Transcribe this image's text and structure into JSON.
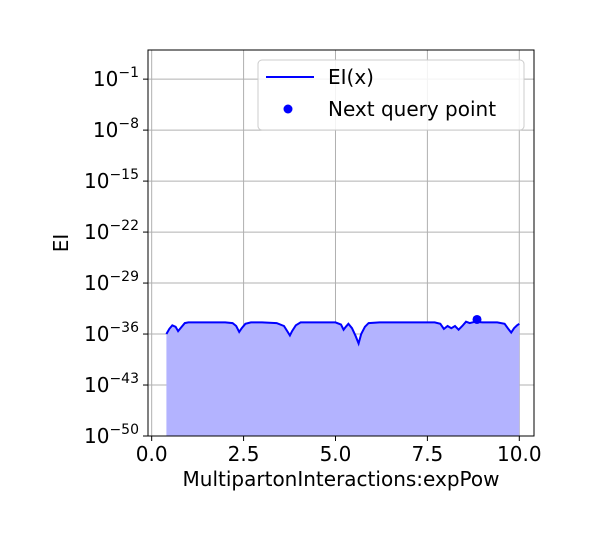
{
  "chart_data": {
    "type": "line",
    "title": "",
    "xlabel": "MultipartonInteractions:expPow",
    "ylabel": "EI",
    "xlim": [
      -0.1,
      10.4
    ],
    "ylim_log10": [
      -50,
      3
    ],
    "y_scale": "log",
    "grid": true,
    "legend_position": "top-right",
    "x_ticks": [
      {
        "value": 0.0,
        "label": "0.0"
      },
      {
        "value": 2.5,
        "label": "2.5"
      },
      {
        "value": 5.0,
        "label": "5.0"
      },
      {
        "value": 7.5,
        "label": "7.5"
      },
      {
        "value": 10.0,
        "label": "10.0"
      }
    ],
    "y_ticks": [
      {
        "exp": -50,
        "base": "10",
        "exponent": "−50"
      },
      {
        "exp": -43,
        "base": "10",
        "exponent": "−43"
      },
      {
        "exp": -36,
        "base": "10",
        "exponent": "−36"
      },
      {
        "exp": -29,
        "base": "10",
        "exponent": "−29"
      },
      {
        "exp": -22,
        "base": "10",
        "exponent": "−22"
      },
      {
        "exp": -15,
        "base": "10",
        "exponent": "−15"
      },
      {
        "exp": -8,
        "base": "10",
        "exponent": "−8"
      },
      {
        "exp": -1,
        "base": "10",
        "exponent": "−1"
      }
    ],
    "series": [
      {
        "name": "EI(x)",
        "kind": "line",
        "color": "#0000ff",
        "fill_color": "#b3b3ff",
        "x": [
          0.4,
          0.48,
          0.56,
          0.65,
          0.72,
          0.8,
          0.9,
          1.0,
          1.5,
          2.0,
          2.2,
          2.3,
          2.38,
          2.45,
          2.55,
          2.7,
          3.0,
          3.4,
          3.6,
          3.7,
          3.76,
          3.82,
          3.92,
          4.05,
          4.5,
          5.0,
          5.15,
          5.22,
          5.28,
          5.35,
          5.45,
          5.55,
          5.63,
          5.7,
          5.8,
          5.9,
          6.2,
          7.0,
          7.7,
          7.85,
          7.95,
          8.05,
          8.15,
          8.25,
          8.35,
          8.45,
          8.55,
          8.65,
          8.8,
          9.0,
          9.4,
          9.6,
          9.7,
          9.78,
          9.86,
          9.94,
          10.0
        ],
        "log10_y": [
          -36.0,
          -35.3,
          -34.8,
          -35.0,
          -35.6,
          -35.1,
          -34.5,
          -34.4,
          -34.4,
          -34.4,
          -34.5,
          -34.9,
          -35.7,
          -35.2,
          -34.6,
          -34.4,
          -34.4,
          -34.5,
          -34.9,
          -35.7,
          -36.2,
          -35.6,
          -34.8,
          -34.4,
          -34.4,
          -34.4,
          -34.7,
          -35.4,
          -35.0,
          -34.6,
          -35.2,
          -36.3,
          -37.3,
          -36.0,
          -35.0,
          -34.5,
          -34.4,
          -34.4,
          -34.4,
          -34.6,
          -35.3,
          -34.9,
          -35.2,
          -34.9,
          -35.4,
          -34.9,
          -34.3,
          -34.5,
          -34.3,
          -34.4,
          -34.4,
          -34.6,
          -35.3,
          -35.8,
          -35.2,
          -34.8,
          -34.6
        ]
      },
      {
        "name": "Next query point",
        "kind": "point",
        "color": "#0000ff",
        "x": [
          8.85
        ],
        "log10_y": [
          -34.0
        ]
      }
    ]
  }
}
